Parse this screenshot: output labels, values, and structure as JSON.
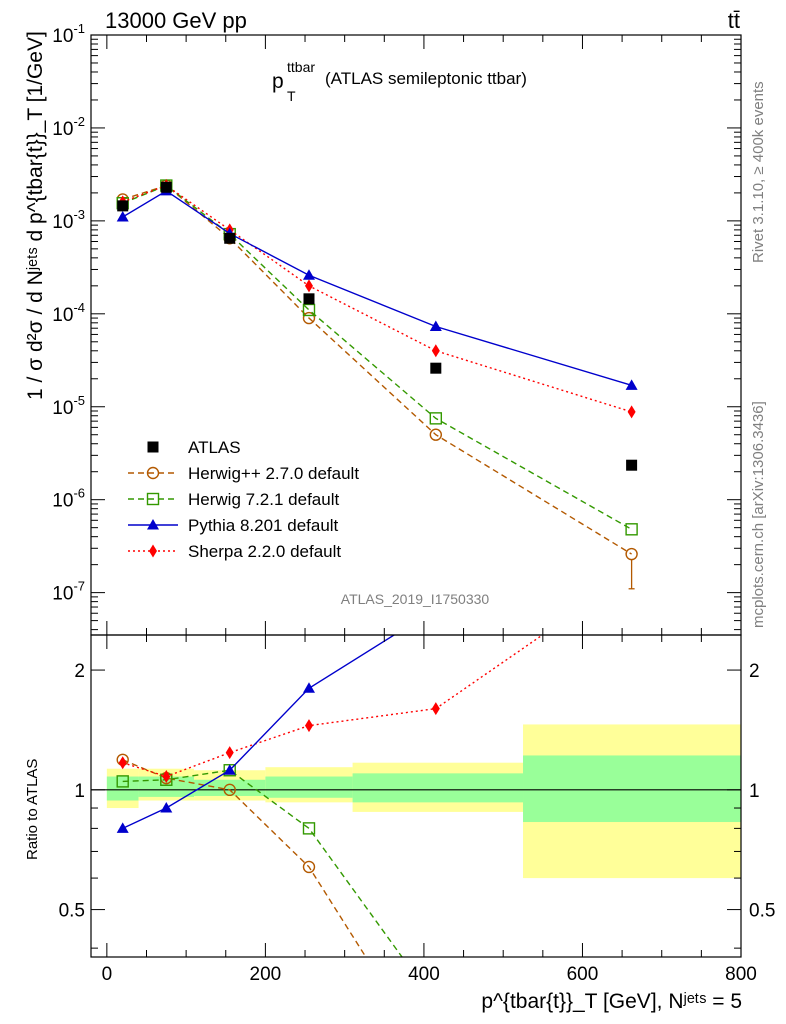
{
  "header": {
    "left": "13000 GeV pp",
    "right": "tt̄"
  },
  "title": {
    "main": "p",
    "sub": "T",
    "sup": "ttbar",
    "rest": "(ATLAS semileptonic ttbar)"
  },
  "side_labels": {
    "rivet": "Rivet 3.1.10, ≥ 400k events",
    "mcplots": "mcplots.cern.ch [arXiv:1306.3436]"
  },
  "analysis_id": "ATLAS_2019_I1750330",
  "ylabel_main": "1 / σ d²σ / d Nʲᵉᵗˢ d p^{tbar{t}}_T [1/GeV]",
  "ylabel_ratio": "Ratio to ATLAS",
  "xlabel": "p^{tbar{t}}_T [GeV], Nʲᵉᵗˢ = 5",
  "colors": {
    "atlas": "#000000",
    "herwigpp": "#b35900",
    "herwig7": "#339900",
    "pythia": "#0000cc",
    "sherpa": "#ff0000",
    "band_inner": "#99ff99",
    "band_outer": "#ffff99"
  },
  "chart_data": [
    {
      "type": "line",
      "yscale": "log",
      "xlim": [
        -20,
        800
      ],
      "ylim": [
        3.5e-08,
        0.1
      ],
      "yticks": [
        "10^{-1}",
        "10^{-2}",
        "10^{-3}",
        "10^{-4}",
        "10^{-5}",
        "10^{-6}",
        "10^{-7}"
      ],
      "legend_position": "lower-left",
      "series": [
        {
          "name": "ATLAS",
          "marker": "square-filled",
          "linestyle": "none",
          "color": "#000000",
          "x": [
            20,
            75,
            155,
            255,
            415,
            662
          ],
          "y": [
            0.00145,
            0.0023,
            0.00065,
            0.000145,
            2.6e-05,
            2.35e-06
          ]
        },
        {
          "name": "Herwig++ 2.7.0 default",
          "marker": "circle-open",
          "linestyle": "dashed",
          "color": "#b35900",
          "x": [
            20,
            75,
            155,
            255,
            415,
            662
          ],
          "y": [
            0.0017,
            0.0024,
            0.00065,
            9e-05,
            5e-06,
            2.6e-07
          ]
        },
        {
          "name": "Herwig 7.2.1 default",
          "marker": "square-open",
          "linestyle": "dashed",
          "color": "#339900",
          "x": [
            20,
            75,
            155,
            255,
            415,
            662
          ],
          "y": [
            0.00155,
            0.0024,
            0.00072,
            0.00011,
            7.5e-06,
            4.8e-07
          ]
        },
        {
          "name": "Pythia 8.201 default",
          "marker": "triangle-filled",
          "linestyle": "solid",
          "color": "#0000cc",
          "x": [
            20,
            75,
            155,
            255,
            415,
            662
          ],
          "y": [
            0.0011,
            0.0021,
            0.00073,
            0.00026,
            7.3e-05,
            1.7e-05
          ]
        },
        {
          "name": "Sherpa 2.2.0 default",
          "marker": "diamond-filled",
          "linestyle": "dotted",
          "color": "#ff0000",
          "x": [
            20,
            75,
            155,
            255,
            415,
            662
          ],
          "y": [
            0.0016,
            0.0024,
            0.0008,
            0.0002,
            4e-05,
            8.8e-06
          ]
        }
      ]
    },
    {
      "type": "line",
      "yscale": "log",
      "xlim": [
        -20,
        800
      ],
      "ylim": [
        0.38,
        2.45
      ],
      "yticks": [
        "0.5",
        "1",
        "2"
      ],
      "xticks": [
        "0",
        "200",
        "400",
        "600",
        "800"
      ],
      "bin_edges": [
        0,
        40,
        110,
        200,
        310,
        525,
        800
      ],
      "band_inner": [
        [
          0.94,
          1.08
        ],
        [
          0.96,
          1.08
        ],
        [
          0.965,
          1.06
        ],
        [
          0.955,
          1.08
        ],
        [
          0.93,
          1.1
        ],
        [
          0.83,
          1.22
        ]
      ],
      "band_outer": [
        [
          0.9,
          1.13
        ],
        [
          0.94,
          1.13
        ],
        [
          0.94,
          1.12
        ],
        [
          0.93,
          1.14
        ],
        [
          0.88,
          1.17
        ],
        [
          0.6,
          1.46
        ]
      ],
      "series": [
        {
          "name": "Herwig++ 2.7.0 default",
          "x": [
            20,
            75,
            155,
            255,
            415
          ],
          "y": [
            1.19,
            1.07,
            1.0,
            0.64,
            0.2
          ]
        },
        {
          "name": "Herwig 7.2.1 default",
          "x": [
            20,
            75,
            155,
            255,
            415
          ],
          "y": [
            1.05,
            1.06,
            1.12,
            0.8,
            0.29
          ]
        },
        {
          "name": "Pythia 8.201 default",
          "x": [
            20,
            75,
            155,
            255,
            415
          ],
          "y": [
            0.8,
            0.9,
            1.12,
            1.8,
            2.85
          ]
        },
        {
          "name": "Sherpa 2.2.0 default",
          "x": [
            20,
            75,
            155,
            255,
            415,
            662
          ],
          "y": [
            1.17,
            1.08,
            1.24,
            1.45,
            1.6,
            3.5
          ]
        }
      ]
    }
  ]
}
